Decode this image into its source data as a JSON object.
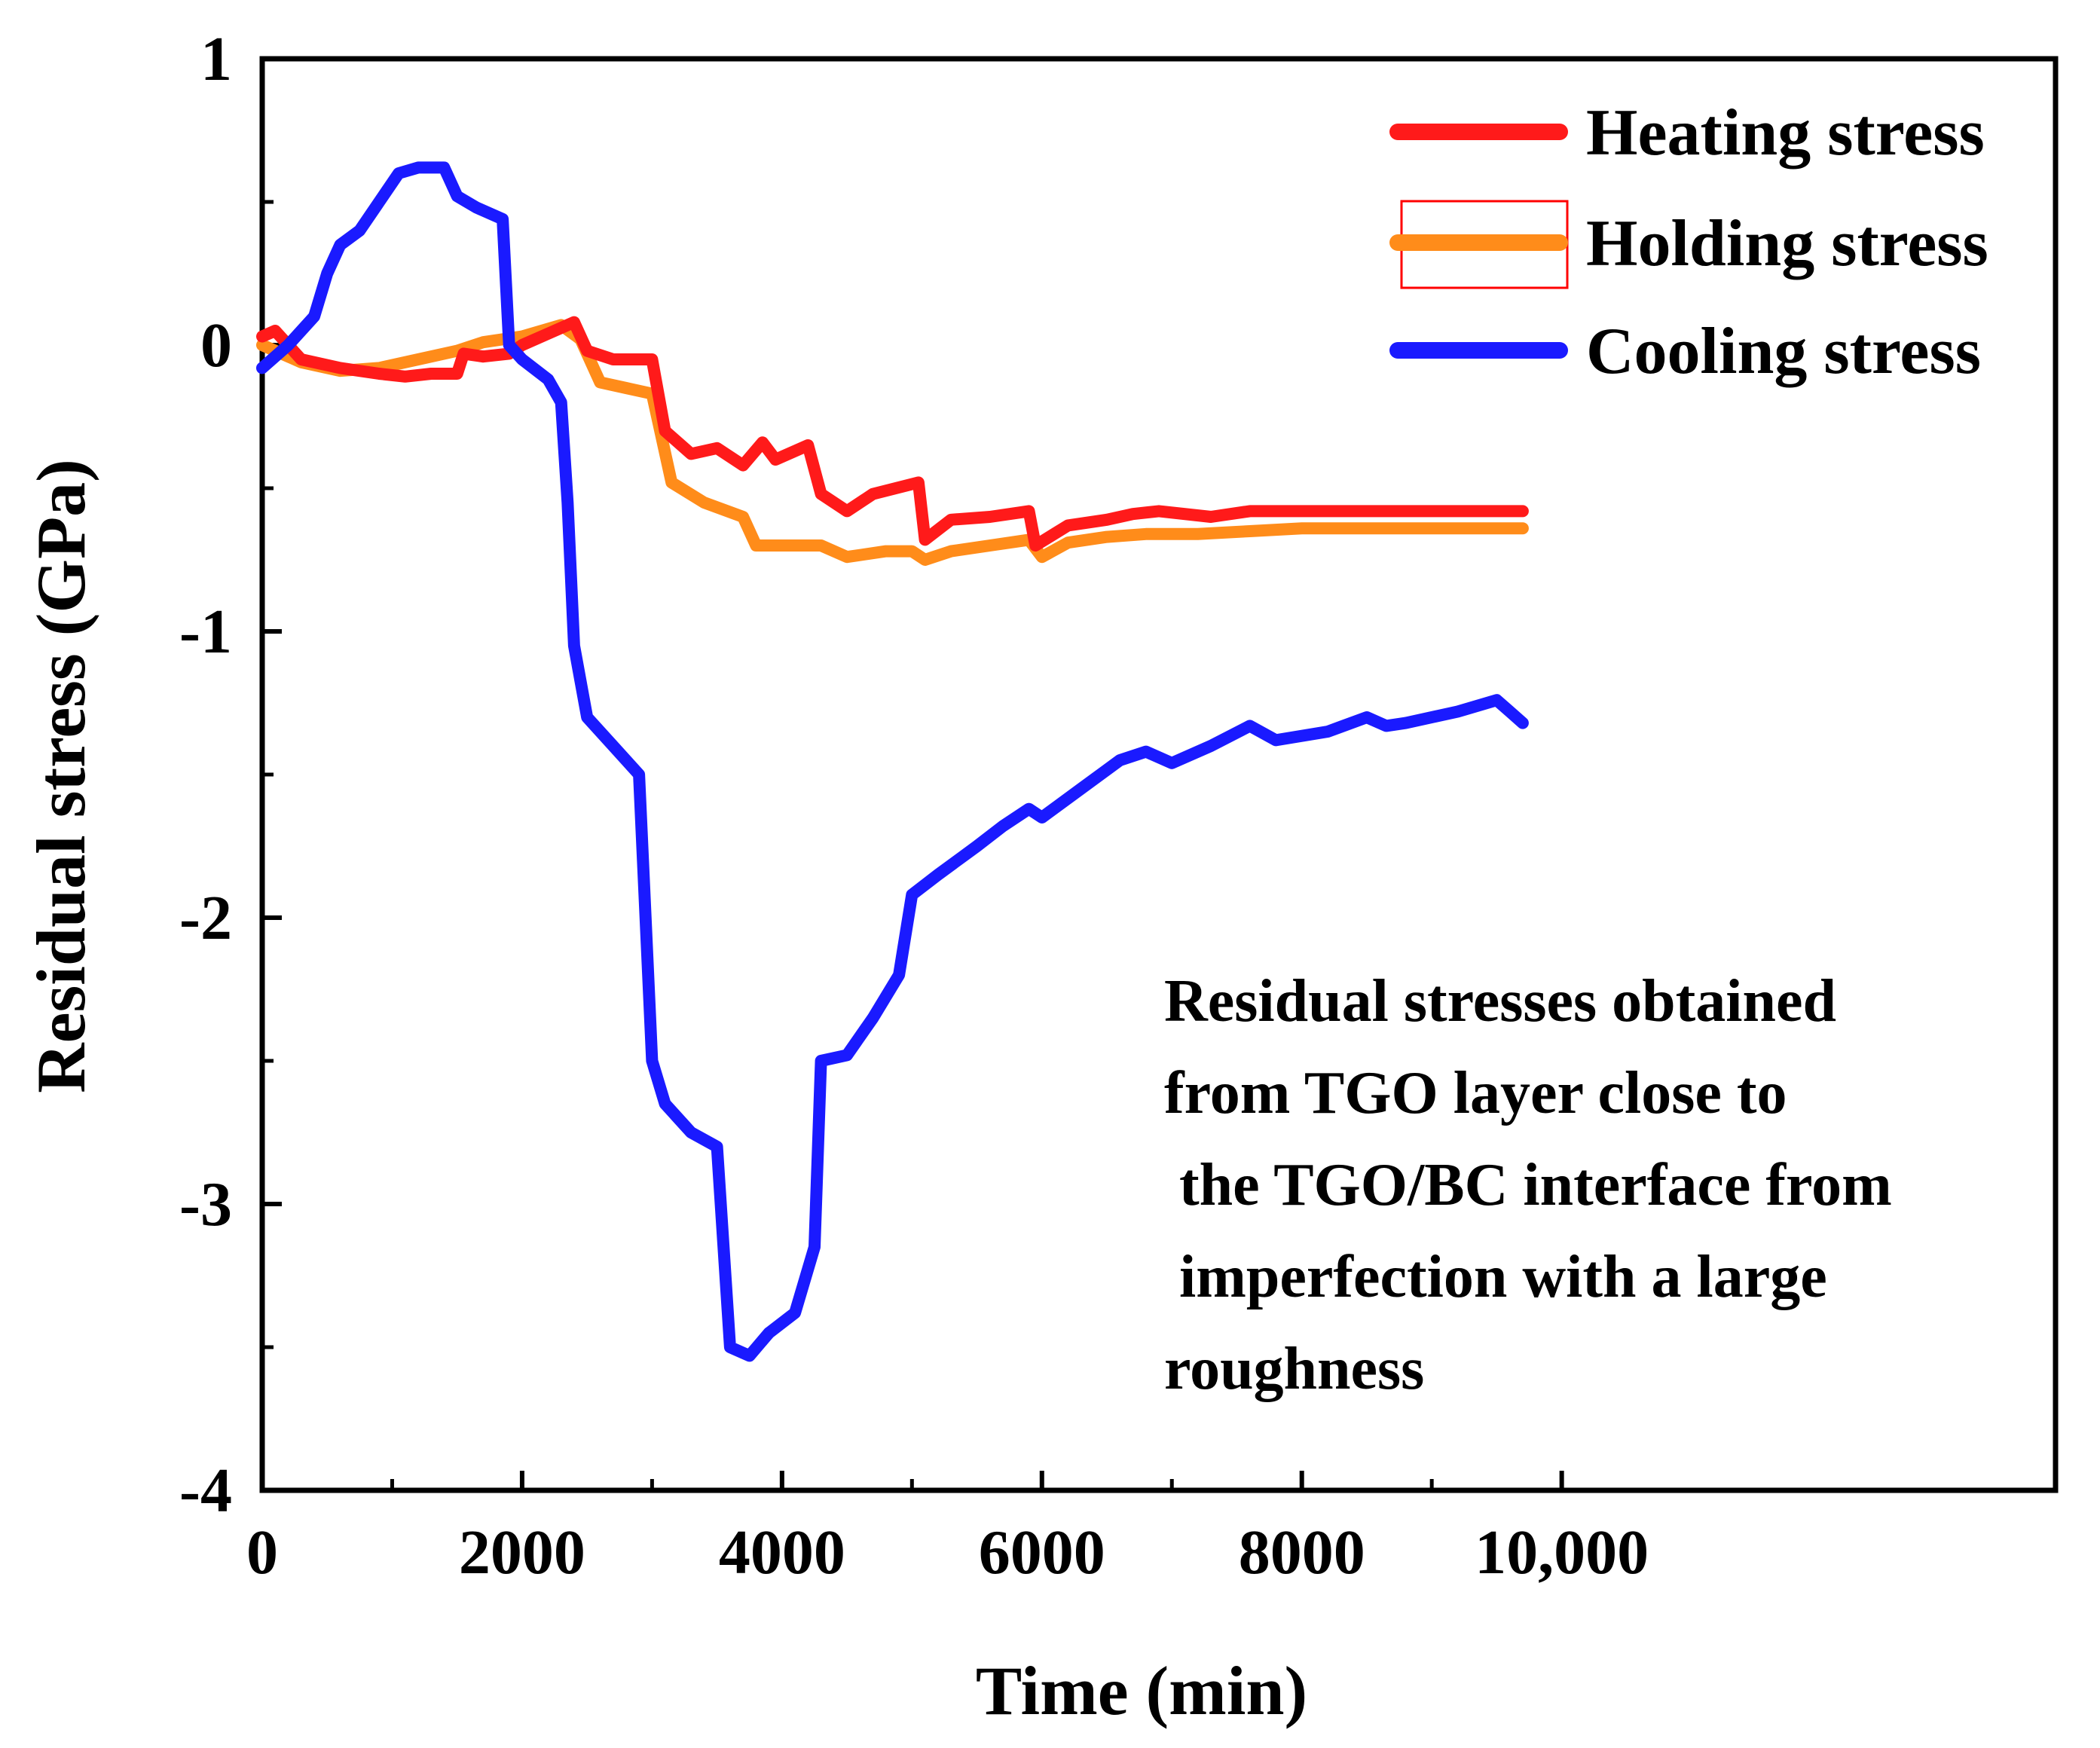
{
  "chart_data": {
    "type": "line",
    "title": "",
    "xlabel": "Time (min)",
    "ylabel": "Residual stress (GPa)",
    "xlim": [
      0,
      13800
    ],
    "ylim": [
      -4,
      1
    ],
    "x_ticks": [
      0,
      2000,
      4000,
      6000,
      8000,
      10000
    ],
    "x_tick_labels": [
      "0",
      "2000",
      "4000",
      "6000",
      "8000",
      "10,000"
    ],
    "y_ticks": [
      1,
      0,
      -1,
      -2,
      -3,
      -4
    ],
    "y_tick_labels": [
      "1",
      "0",
      "-1",
      "-2",
      "-3",
      "-4"
    ],
    "legend_position": "top-right",
    "annotation": [
      "Residual stresses obtained",
      "from TGO layer close to",
      " the TGO/BC interface from",
      " imperfection with a large",
      "roughness"
    ],
    "series": [
      {
        "name": "Heating stress",
        "color": "#ff1a1a",
        "points": [
          [
            0,
            0.03
          ],
          [
            100,
            0.05
          ],
          [
            300,
            -0.05
          ],
          [
            600,
            -0.08
          ],
          [
            900,
            -0.1
          ],
          [
            1100,
            -0.11
          ],
          [
            1300,
            -0.1
          ],
          [
            1500,
            -0.1
          ],
          [
            1550,
            -0.03
          ],
          [
            1700,
            -0.04
          ],
          [
            1900,
            -0.03
          ],
          [
            2000,
            0.0
          ],
          [
            2200,
            0.04
          ],
          [
            2400,
            0.08
          ],
          [
            2500,
            -0.02
          ],
          [
            2700,
            -0.05
          ],
          [
            2900,
            -0.05
          ],
          [
            3000,
            -0.05
          ],
          [
            3100,
            -0.3
          ],
          [
            3300,
            -0.38
          ],
          [
            3500,
            -0.36
          ],
          [
            3700,
            -0.42
          ],
          [
            3850,
            -0.34
          ],
          [
            3950,
            -0.4
          ],
          [
            4200,
            -0.35
          ],
          [
            4300,
            -0.52
          ],
          [
            4500,
            -0.58
          ],
          [
            4700,
            -0.52
          ],
          [
            5050,
            -0.48
          ],
          [
            5100,
            -0.68
          ],
          [
            5300,
            -0.61
          ],
          [
            5600,
            -0.6
          ],
          [
            5900,
            -0.58
          ],
          [
            5950,
            -0.7
          ],
          [
            6200,
            -0.63
          ],
          [
            6500,
            -0.61
          ],
          [
            6700,
            -0.59
          ],
          [
            6900,
            -0.58
          ],
          [
            7300,
            -0.6
          ],
          [
            7600,
            -0.58
          ],
          [
            8000,
            -0.58
          ],
          [
            8500,
            -0.58
          ],
          [
            9000,
            -0.58
          ],
          [
            9500,
            -0.58
          ],
          [
            9700,
            -0.58
          ]
        ]
      },
      {
        "name": "Holding stress",
        "color": "#ff8c1a",
        "points": [
          [
            0,
            0.0
          ],
          [
            300,
            -0.06
          ],
          [
            600,
            -0.09
          ],
          [
            900,
            -0.08
          ],
          [
            1200,
            -0.05
          ],
          [
            1500,
            -0.02
          ],
          [
            1700,
            0.01
          ],
          [
            2000,
            0.03
          ],
          [
            2300,
            0.07
          ],
          [
            2450,
            0.02
          ],
          [
            2600,
            -0.13
          ],
          [
            2800,
            -0.15
          ],
          [
            3000,
            -0.17
          ],
          [
            3150,
            -0.48
          ],
          [
            3400,
            -0.55
          ],
          [
            3700,
            -0.6
          ],
          [
            3800,
            -0.7
          ],
          [
            4000,
            -0.7
          ],
          [
            4300,
            -0.7
          ],
          [
            4500,
            -0.74
          ],
          [
            4800,
            -0.72
          ],
          [
            5000,
            -0.72
          ],
          [
            5100,
            -0.75
          ],
          [
            5300,
            -0.72
          ],
          [
            5600,
            -0.7
          ],
          [
            5900,
            -0.68
          ],
          [
            6000,
            -0.74
          ],
          [
            6200,
            -0.69
          ],
          [
            6500,
            -0.67
          ],
          [
            6800,
            -0.66
          ],
          [
            7200,
            -0.66
          ],
          [
            7600,
            -0.65
          ],
          [
            8000,
            -0.64
          ],
          [
            8500,
            -0.64
          ],
          [
            9000,
            -0.64
          ],
          [
            9500,
            -0.64
          ],
          [
            9700,
            -0.64
          ]
        ]
      },
      {
        "name": "Cooling stress",
        "color": "#1a1aff",
        "points": [
          [
            0,
            -0.08
          ],
          [
            200,
            0.0
          ],
          [
            400,
            0.1
          ],
          [
            500,
            0.25
          ],
          [
            600,
            0.35
          ],
          [
            750,
            0.4
          ],
          [
            900,
            0.5
          ],
          [
            1050,
            0.6
          ],
          [
            1200,
            0.62
          ],
          [
            1400,
            0.62
          ],
          [
            1500,
            0.52
          ],
          [
            1650,
            0.48
          ],
          [
            1850,
            0.44
          ],
          [
            1900,
            0.0
          ],
          [
            2000,
            -0.05
          ],
          [
            2200,
            -0.12
          ],
          [
            2300,
            -0.2
          ],
          [
            2350,
            -0.55
          ],
          [
            2400,
            -1.05
          ],
          [
            2500,
            -1.3
          ],
          [
            2700,
            -1.4
          ],
          [
            2900,
            -1.5
          ],
          [
            3000,
            -2.5
          ],
          [
            3100,
            -2.65
          ],
          [
            3300,
            -2.75
          ],
          [
            3500,
            -2.8
          ],
          [
            3600,
            -3.5
          ],
          [
            3750,
            -3.53
          ],
          [
            3900,
            -3.45
          ],
          [
            4100,
            -3.38
          ],
          [
            4250,
            -3.15
          ],
          [
            4300,
            -2.5
          ],
          [
            4500,
            -2.48
          ],
          [
            4700,
            -2.35
          ],
          [
            4900,
            -2.2
          ],
          [
            5000,
            -1.92
          ],
          [
            5200,
            -1.85
          ],
          [
            5500,
            -1.75
          ],
          [
            5700,
            -1.68
          ],
          [
            5900,
            -1.62
          ],
          [
            6000,
            -1.65
          ],
          [
            6300,
            -1.55
          ],
          [
            6600,
            -1.45
          ],
          [
            6800,
            -1.42
          ],
          [
            7000,
            -1.46
          ],
          [
            7300,
            -1.4
          ],
          [
            7600,
            -1.33
          ],
          [
            7800,
            -1.38
          ],
          [
            8200,
            -1.35
          ],
          [
            8500,
            -1.3
          ],
          [
            8650,
            -1.33
          ],
          [
            8800,
            -1.32
          ],
          [
            9200,
            -1.28
          ],
          [
            9500,
            -1.24
          ],
          [
            9600,
            -1.28
          ],
          [
            9700,
            -1.32
          ]
        ]
      }
    ]
  }
}
